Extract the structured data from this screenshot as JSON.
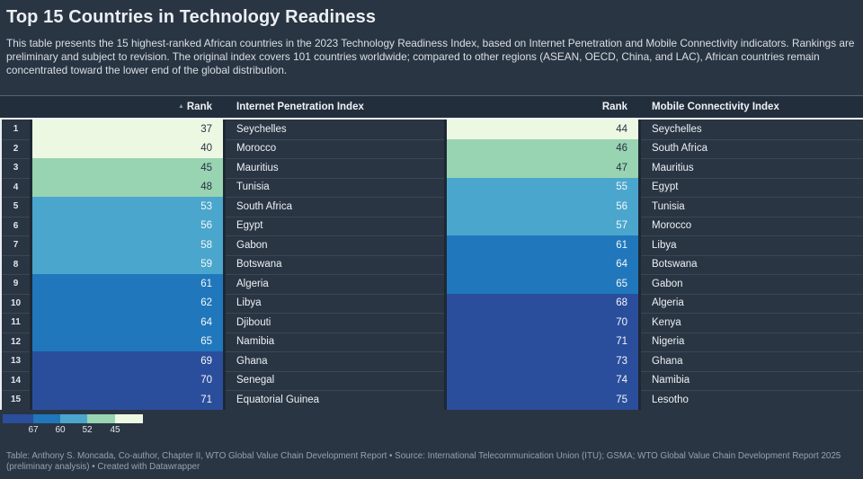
{
  "title": "Top 15 Countries in Technology Readiness",
  "description": "This table presents the 15 highest-ranked African countries in the 2023 Technology Readiness Index, based on Internet Penetration and Mobile Connectivity indicators. Rankings are preliminary and subject to revision. The original index covers 101 countries worldwide; compared to other regions (ASEAN, OECD, China, and LAC), African countries remain concentrated toward the lower end of the global distribution.",
  "chart_data": {
    "type": "table",
    "title": "Top 15 Countries in Technology Readiness",
    "columns": [
      "Rank",
      "Internet Penetration Index",
      "Rank",
      "Mobile Connectivity Index"
    ],
    "rows": [
      {
        "num": "1",
        "internet_rank": 37,
        "internet_country": "Seychelles",
        "mobile_rank": 44,
        "mobile_country": "Seychelles"
      },
      {
        "num": "2",
        "internet_rank": 40,
        "internet_country": "Morocco",
        "mobile_rank": 46,
        "mobile_country": "South Africa"
      },
      {
        "num": "3",
        "internet_rank": 45,
        "internet_country": "Mauritius",
        "mobile_rank": 47,
        "mobile_country": "Mauritius"
      },
      {
        "num": "4",
        "internet_rank": 48,
        "internet_country": "Tunisia",
        "mobile_rank": 55,
        "mobile_country": "Egypt"
      },
      {
        "num": "5",
        "internet_rank": 53,
        "internet_country": "South Africa",
        "mobile_rank": 56,
        "mobile_country": "Tunisia"
      },
      {
        "num": "6",
        "internet_rank": 56,
        "internet_country": "Egypt",
        "mobile_rank": 57,
        "mobile_country": "Morocco"
      },
      {
        "num": "7",
        "internet_rank": 58,
        "internet_country": "Gabon",
        "mobile_rank": 61,
        "mobile_country": "Libya"
      },
      {
        "num": "8",
        "internet_rank": 59,
        "internet_country": "Botswana",
        "mobile_rank": 64,
        "mobile_country": "Botswana"
      },
      {
        "num": "9",
        "internet_rank": 61,
        "internet_country": "Algeria",
        "mobile_rank": 65,
        "mobile_country": "Gabon"
      },
      {
        "num": "10",
        "internet_rank": 62,
        "internet_country": "Libya",
        "mobile_rank": 68,
        "mobile_country": "Algeria"
      },
      {
        "num": "11",
        "internet_rank": 64,
        "internet_country": "Djibouti",
        "mobile_rank": 70,
        "mobile_country": "Kenya"
      },
      {
        "num": "12",
        "internet_rank": 65,
        "internet_country": "Namibia",
        "mobile_rank": 71,
        "mobile_country": "Nigeria"
      },
      {
        "num": "13",
        "internet_rank": 69,
        "internet_country": "Ghana",
        "mobile_rank": 73,
        "mobile_country": "Ghana"
      },
      {
        "num": "14",
        "internet_rank": 70,
        "internet_country": "Senegal",
        "mobile_rank": 74,
        "mobile_country": "Namibia"
      },
      {
        "num": "15",
        "internet_rank": 71,
        "internet_country": "Equatorial Guinea",
        "mobile_rank": 75,
        "mobile_country": "Lesotho"
      }
    ],
    "color_scale": {
      "thresholds": [
        45,
        52,
        60,
        67
      ],
      "colors": [
        "#edf8e3",
        "#98d3b2",
        "#4aa6cd",
        "#2077bb",
        "#2a4e9b"
      ],
      "legend_labels": [
        "67",
        "60",
        "52",
        "45"
      ],
      "legend_order": "dark-to-light"
    }
  },
  "legend": {
    "labels": [
      "67",
      "60",
      "52",
      "45"
    ]
  },
  "sort": {
    "icon": "▲",
    "sorted_column": "Rank (Internet Penetration)",
    "direction": "ascending"
  },
  "colors": {
    "background": "#2a3543",
    "header_background": "#232e3c",
    "dark_text": "#273342",
    "light_text": "#f4f7f9"
  },
  "footer": {
    "text": "Table: Anthony S. Moncada, Co-author, Chapter II, WTO Global Value Chain Development Report • Source: International Telecommunication Union (ITU); GSMA; WTO Global Value Chain Development Report 2025 (preliminary analysis) • Created with Datawrapper"
  }
}
